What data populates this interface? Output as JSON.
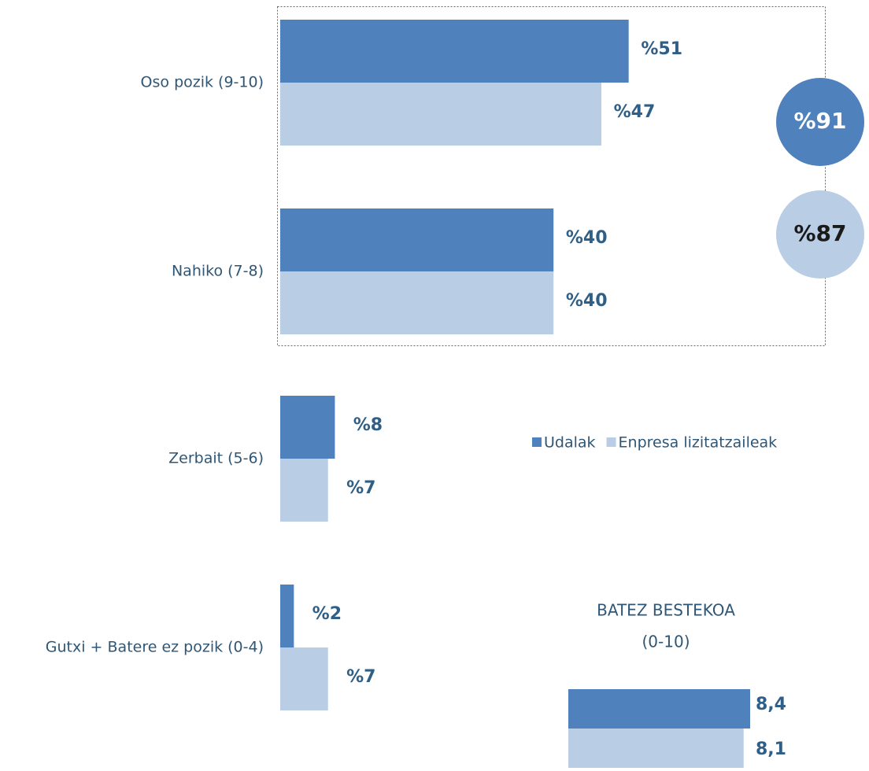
{
  "chart_data": [
    {
      "type": "bar",
      "categories": [
        "Oso pozik  (9-10)",
        "Nahiko (7-8)",
        "Zerbait (5-6)",
        "Gutxi + Batere ez pozik (0-4)"
      ],
      "series": [
        {
          "name": "Udalak",
          "color": "#4f81bd",
          "values": [
            51,
            40,
            8,
            2
          ],
          "value_labels": [
            "%51",
            "%40",
            "%8",
            "%2"
          ]
        },
        {
          "name": "Enpresa lizitatzaileak",
          "color": "#b9cde5",
          "values": [
            47,
            40,
            7,
            7
          ],
          "value_labels": [
            "%47",
            "%40",
            "%7",
            "%7"
          ]
        }
      ],
      "totals": {
        "values": [
          91,
          87
        ],
        "value_labels": [
          "%91",
          "%87"
        ]
      }
    },
    {
      "type": "bar",
      "title": "BATEZ BESTEKOA",
      "subtitle": "(0-10)",
      "series": [
        {
          "color": "#4f81bd",
          "values": [
            8.4
          ],
          "value_labels": [
            "8,4"
          ]
        },
        {
          "color": "#b9cde5",
          "values": [
            8.1
          ],
          "value_labels": [
            "8,1"
          ]
        }
      ]
    }
  ]
}
